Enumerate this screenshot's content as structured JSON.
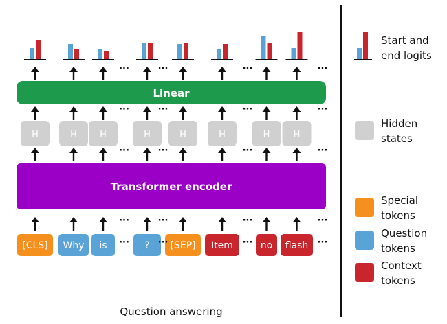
{
  "caption": "Question answering",
  "linear_label": "Linear",
  "encoder_label": "Transformer encoder",
  "hidden_label": "H",
  "ellipsis": "···",
  "colors": {
    "linear": "#1e9a4d",
    "encoder": "#9b00c7",
    "hidden": "#d0d0d0",
    "special": "#f5901e",
    "question": "#5aa3d6",
    "context": "#c8262c",
    "start_bar": "#5aa3d6",
    "end_bar": "#c8262c",
    "arrow": "#111111"
  },
  "tokens": [
    {
      "text": "[CLS]",
      "type": "special"
    },
    {
      "text": "Why",
      "type": "question"
    },
    {
      "text": "is",
      "type": "question"
    },
    {
      "text": "?",
      "type": "question"
    },
    {
      "text": "[SEP]",
      "type": "special"
    },
    {
      "text": "Item",
      "type": "context"
    },
    {
      "text": "no",
      "type": "context"
    },
    {
      "text": "flash",
      "type": "context"
    }
  ],
  "logits": [
    {
      "start": 0.4,
      "end": 0.7
    },
    {
      "start": 0.55,
      "end": 0.35
    },
    {
      "start": 0.35,
      "end": 0.3
    },
    {
      "start": 0.6,
      "end": 0.6
    },
    {
      "start": 0.55,
      "end": 0.6
    },
    {
      "start": 0.35,
      "end": 0.55
    },
    {
      "start": 0.85,
      "end": 0.6
    },
    {
      "start": 0.4,
      "end": 1.0
    }
  ],
  "legend": [
    {
      "kind": "logits",
      "lines": [
        "Start and",
        "end logits"
      ]
    },
    {
      "kind": "hidden",
      "lines": [
        "Hidden",
        "states"
      ]
    },
    {
      "kind": "special",
      "lines": [
        "Special",
        "tokens"
      ]
    },
    {
      "kind": "question",
      "lines": [
        "Question",
        "tokens"
      ]
    },
    {
      "kind": "context",
      "lines": [
        "Context",
        "tokens"
      ]
    }
  ]
}
